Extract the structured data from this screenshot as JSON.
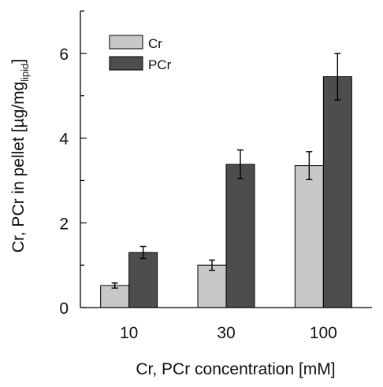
{
  "chart_data": {
    "type": "bar",
    "categories": [
      "10",
      "30",
      "100"
    ],
    "series": [
      {
        "name": "Cr",
        "values": [
          0.52,
          1.0,
          3.35
        ],
        "errors": [
          0.06,
          0.12,
          0.33
        ],
        "color": "#c8c8c8"
      },
      {
        "name": "PCr",
        "values": [
          1.3,
          3.38,
          5.45
        ],
        "errors": [
          0.14,
          0.34,
          0.55
        ],
        "color": "#4d4d4d"
      }
    ],
    "xlabel": "Cr, PCr concentration [mM]",
    "ylabel": "Cr, PCr in pellet [µg/mg",
    "ylabel_subscript": "lipid",
    "ylabel_close": "]",
    "yticks": [
      0,
      2,
      4,
      6
    ],
    "ylim": [
      0,
      7
    ],
    "legend": "top-left",
    "grid": false
  }
}
